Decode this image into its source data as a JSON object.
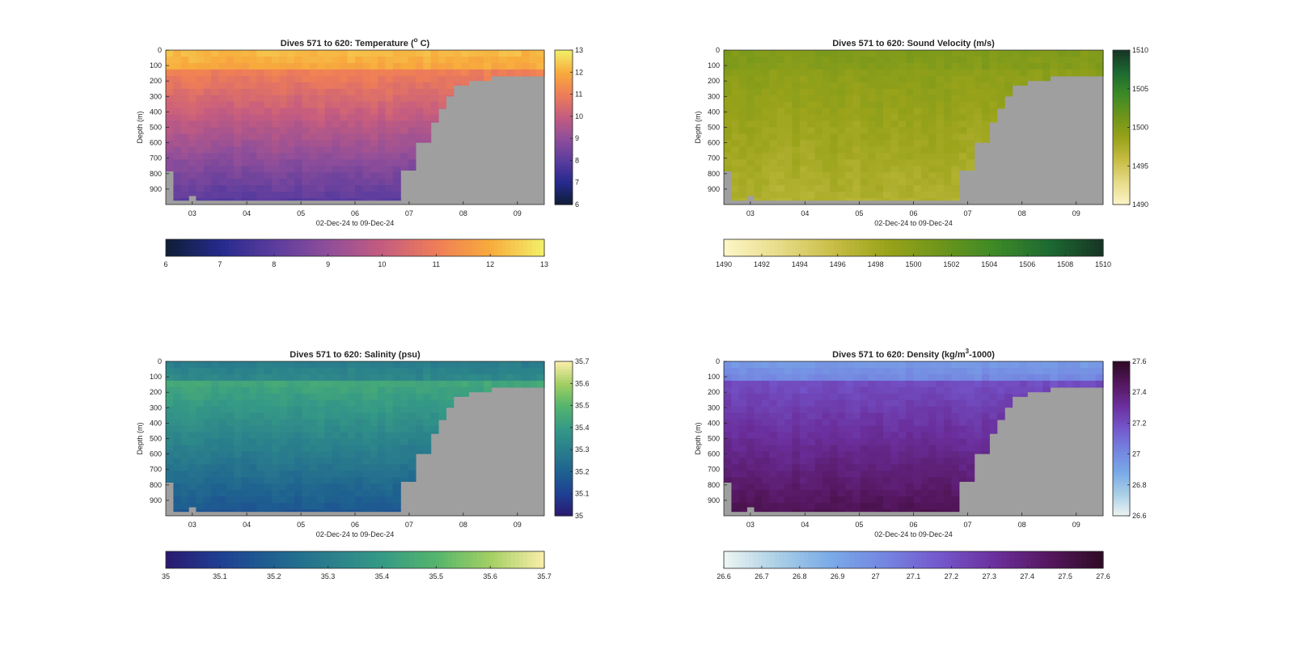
{
  "chart_data": [
    {
      "type": "heatmap",
      "title": "Dives 571 to 620: Temperature (",
      "title_super": "o",
      "title_end": " C)",
      "ylabel": "Depth (m)",
      "xlabel": "02-Dec-24 to 09-Dec-24",
      "x_ticks": [
        "03",
        "04",
        "05",
        "06",
        "07",
        "08",
        "09"
      ],
      "y_ticks": [
        "0",
        "100",
        "200",
        "300",
        "400",
        "500",
        "600",
        "700",
        "800",
        "900"
      ],
      "ylim": [
        0,
        1000
      ],
      "colormap": [
        "#0f1d34",
        "#252a8c",
        "#5b3c9e",
        "#8f4e9a",
        "#c55c80",
        "#ee7d58",
        "#f8ab3c",
        "#f2f068"
      ],
      "colorbar_range": [
        6,
        13
      ],
      "colorbar_ticks": [
        "6",
        "7",
        "8",
        "9",
        "10",
        "11",
        "12",
        "13"
      ],
      "horizontal_ticks": [
        "6",
        "7",
        "8",
        "9",
        "10",
        "11",
        "12",
        "13"
      ],
      "surface_value": 12.2,
      "mixed_layer_value": 11.1,
      "deep_value": 7.8,
      "bottom_mask_color": "#9f9f9f"
    },
    {
      "type": "heatmap",
      "title": "Dives 571 to 620: Sound Velocity (m/s)",
      "ylabel": "Depth (m)",
      "xlabel": "02-Dec-24 to 09-Dec-24",
      "x_ticks": [
        "03",
        "04",
        "05",
        "06",
        "07",
        "08",
        "09"
      ],
      "y_ticks": [
        "0",
        "100",
        "200",
        "300",
        "400",
        "500",
        "600",
        "700",
        "800",
        "900"
      ],
      "ylim": [
        0,
        1000
      ],
      "colormap": [
        "#fdf6c8",
        "#e8dc8a",
        "#c9be47",
        "#9aa31a",
        "#6e951b",
        "#3d8a26",
        "#1d6a32",
        "#173524"
      ],
      "colorbar_range": [
        1490,
        1510
      ],
      "colorbar_ticks": [
        "1490",
        "1495",
        "1500",
        "1505",
        "1510"
      ],
      "horizontal_ticks": [
        "1490",
        "1492",
        "1494",
        "1496",
        "1498",
        "1500",
        "1502",
        "1504",
        "1506",
        "1508",
        "1510"
      ],
      "surface_value": 1500.2,
      "mixed_layer_value": 1499.5,
      "deep_value": 1497.0,
      "bottom_mask_color": "#9f9f9f"
    },
    {
      "type": "heatmap",
      "title": "Dives 571 to 620: Salinity (psu)",
      "ylabel": "Depth (m)",
      "xlabel": "02-Dec-24 to 09-Dec-24",
      "x_ticks": [
        "03",
        "04",
        "05",
        "06",
        "07",
        "08",
        "09"
      ],
      "y_ticks": [
        "0",
        "100",
        "200",
        "300",
        "400",
        "500",
        "600",
        "700",
        "800",
        "900"
      ],
      "ylim": [
        0,
        1000
      ],
      "colormap": [
        "#2a1870",
        "#1f3f93",
        "#1e6290",
        "#2a7e8c",
        "#359a86",
        "#55b56c",
        "#a3cf63",
        "#fbeeaa"
      ],
      "colorbar_range": [
        35,
        35.7
      ],
      "colorbar_ticks": [
        "35",
        "35.1",
        "35.2",
        "35.3",
        "35.4",
        "35.5",
        "35.6",
        "35.7"
      ],
      "horizontal_ticks": [
        "35",
        "35.1",
        "35.2",
        "35.3",
        "35.4",
        "35.5",
        "35.6",
        "35.7"
      ],
      "surface_value": 35.3,
      "mixed_layer_value": 35.45,
      "deep_value": 35.15,
      "bottom_mask_color": "#9f9f9f"
    },
    {
      "type": "heatmap",
      "title": "Dives 571 to 620: Density (kg/m",
      "title_super": "3",
      "title_end": "-1000)",
      "ylabel": "Depth (m)",
      "xlabel": "02-Dec-24 to 09-Dec-24",
      "x_ticks": [
        "03",
        "04",
        "05",
        "06",
        "07",
        "08",
        "09"
      ],
      "y_ticks": [
        "0",
        "100",
        "200",
        "300",
        "400",
        "500",
        "600",
        "700",
        "800",
        "900"
      ],
      "ylim": [
        0,
        1000
      ],
      "colormap": [
        "#eef5f3",
        "#a9cfe6",
        "#79a9e8",
        "#7484e0",
        "#7457cc",
        "#6b2f9d",
        "#55175f",
        "#2e0a25"
      ],
      "colorbar_range": [
        26.6,
        27.6
      ],
      "colorbar_ticks": [
        "26.6",
        "26.8",
        "27",
        "27.2",
        "27.4",
        "27.6"
      ],
      "horizontal_ticks": [
        "26.6",
        "26.7",
        "26.8",
        "26.9",
        "27",
        "27.1",
        "27.2",
        "27.3",
        "27.4",
        "27.5",
        "27.6"
      ],
      "surface_value": 26.95,
      "mixed_layer_value": 27.2,
      "deep_value": 27.5,
      "bottom_mask_color": "#9f9f9f"
    }
  ]
}
